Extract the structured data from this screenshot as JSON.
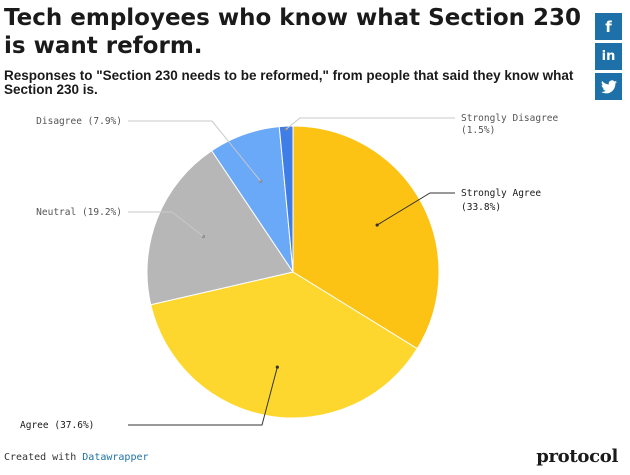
{
  "chart_data": {
    "type": "pie",
    "title": "Tech employees who know what Section 230 is want reform.",
    "subtitle": "Responses to \"Section 230 needs to be reformed,\" from people that said they know what Section 230 is.",
    "slices": [
      {
        "label": "Strongly Agree",
        "value": 33.8,
        "value_label": "(33.8%)",
        "color": "#fcc314"
      },
      {
        "label": "Agree",
        "value": 37.6,
        "value_label": "(37.6%)",
        "color": "#fdd72e"
      },
      {
        "label": "Neutral",
        "value": 19.2,
        "value_label": "(19.2%)",
        "color": "#b7b7b7"
      },
      {
        "label": "Disagree",
        "value": 7.9,
        "value_label": "(7.9%)",
        "color": "#6aa8f8"
      },
      {
        "label": "Strongly Disagree",
        "value": 1.5,
        "value_label": "(1.5%)",
        "color": "#3f7de9"
      }
    ]
  },
  "share": {
    "facebook": "f",
    "linkedin": "in",
    "twitter_icon": "twitter-bird-icon"
  },
  "footer": {
    "prefix": "Created with",
    "link": "Datawrapper"
  },
  "brand": "protocol"
}
